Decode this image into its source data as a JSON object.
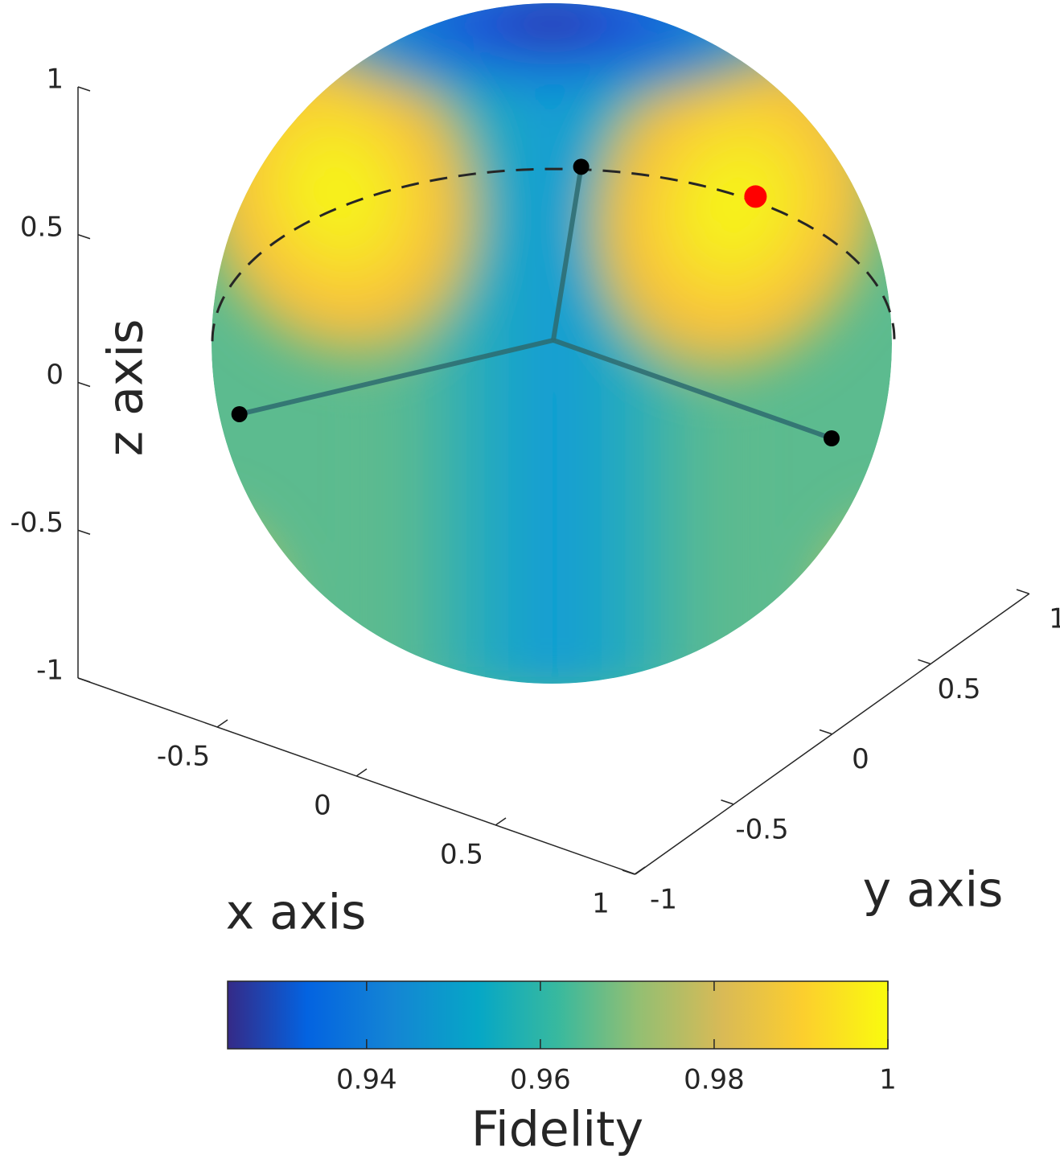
{
  "chart_data": {
    "type": "scatter3d",
    "xlabel": "x axis",
    "ylabel": "y axis",
    "zlabel": "z axis",
    "xlim": [
      -1,
      1
    ],
    "ylim": [
      -1,
      1
    ],
    "zlim": [
      -1,
      1
    ],
    "xticks": [
      -0.5,
      0,
      0.5,
      1
    ],
    "yticks": [
      -1,
      -0.5,
      0,
      0.5,
      1
    ],
    "zticks": [
      -1,
      -0.5,
      0,
      0.5,
      1
    ],
    "points": {
      "x": [
        0.1,
        -0.505,
        1.0
      ],
      "y": [
        0,
        -0.88,
        0
      ],
      "z": [
        0.62,
        0,
        0
      ],
      "color": "#000000"
    },
    "highlight": {
      "x": 0.5,
      "y": 0.32,
      "z": 0.5,
      "color": "#ff0000"
    },
    "colorbar": {
      "label": "Fidelity",
      "clim": [
        0.924,
        1
      ],
      "ticks": [
        0.94,
        0.96,
        0.98,
        1
      ]
    }
  }
}
